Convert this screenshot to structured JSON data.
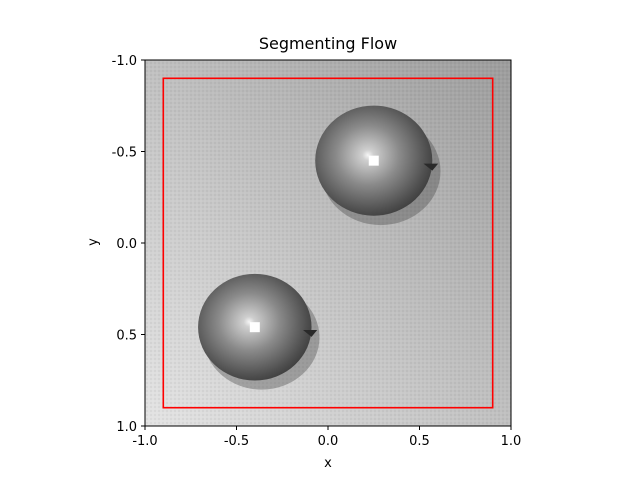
{
  "chart_data": {
    "type": "image",
    "title": "Segmenting Flow",
    "xlabel": "x",
    "ylabel": "y",
    "xlim": [
      -1.0,
      1.0
    ],
    "ylim": [
      1.0,
      -1.0
    ],
    "y_inverted": true,
    "x_ticks": [
      -1.0,
      -0.5,
      0.0,
      0.5,
      1.0
    ],
    "x_tick_labels": [
      "-1.0",
      "-0.5",
      "0.0",
      "0.5",
      "1.0"
    ],
    "y_ticks": [
      -1.0,
      -0.5,
      0.0,
      0.5,
      1.0
    ],
    "y_tick_labels": [
      "-1.0",
      "-0.5",
      "0.0",
      "0.5",
      "1.0"
    ],
    "grid": false,
    "image": {
      "colormap": "gray",
      "objects": [
        {
          "shape": "apple",
          "center": [
            0.25,
            -0.45
          ],
          "radius": 0.32
        },
        {
          "shape": "apple",
          "center": [
            -0.4,
            0.46
          ],
          "radius": 0.31
        }
      ]
    },
    "rectangle": {
      "x0": -0.9,
      "y0": -0.9,
      "x1": 0.9,
      "y1": 0.9,
      "color": "#ff0000"
    }
  }
}
